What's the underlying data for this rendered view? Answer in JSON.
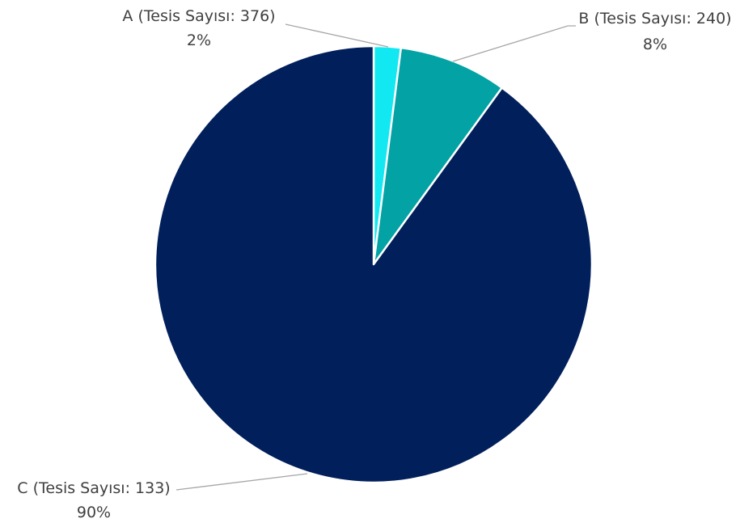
{
  "chart_data": {
    "type": "pie",
    "title": "",
    "start_angle_deg": 0,
    "direction": "clockwise",
    "slices": [
      {
        "label": "A (Tesis Sayısı: 376)",
        "percent_label": "2%",
        "value": 2,
        "color": "#12e8f2"
      },
      {
        "label": "B (Tesis Sayısı: 240)",
        "percent_label": "8%",
        "value": 8,
        "color": "#02a2a5"
      },
      {
        "label": "C (Tesis Sayısı: 133)",
        "percent_label": "90%",
        "value": 90,
        "color": "#011f5b"
      }
    ],
    "legend": "none",
    "data_labels": "outside-with-leader-lines"
  }
}
